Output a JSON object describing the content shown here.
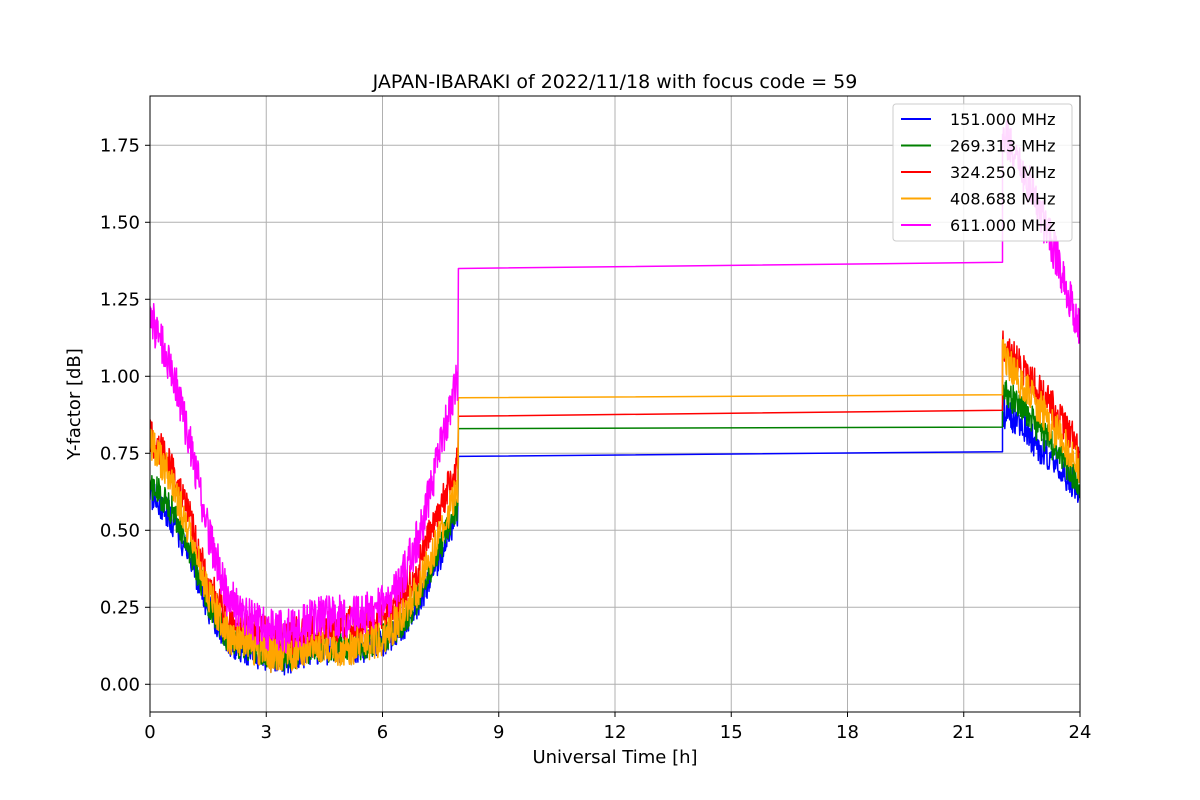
{
  "chart_data": {
    "type": "line",
    "title": "JAPAN-IBARAKI of 2022/11/18 with focus code = 59",
    "xlabel": "Universal Time [h]",
    "ylabel": "Y-factor [dB]",
    "xlim": [
      0,
      24
    ],
    "ylim": [
      -0.09,
      1.91
    ],
    "xticks": [
      0,
      3,
      6,
      9,
      12,
      15,
      18,
      21,
      24
    ],
    "xtick_labels": [
      "0",
      "3",
      "6",
      "9",
      "12",
      "15",
      "18",
      "21",
      "24"
    ],
    "yticks": [
      0.0,
      0.25,
      0.5,
      0.75,
      1.0,
      1.25,
      1.5,
      1.75
    ],
    "ytick_labels": [
      "0.00",
      "0.25",
      "0.50",
      "0.75",
      "1.00",
      "1.25",
      "1.50",
      "1.75"
    ],
    "grid": true,
    "legend_position": "top-right",
    "series": [
      {
        "name": "151.000 MHz",
        "color": "#0000ff",
        "x": [
          0,
          0.5,
          1.0,
          1.5,
          2.0,
          2.5,
          3.0,
          3.5,
          4.0,
          4.5,
          5.0,
          5.5,
          6.0,
          6.5,
          7.0,
          7.5,
          7.95,
          8.0,
          22.0,
          22.05,
          22.5,
          23.0,
          23.5,
          24.0
        ],
        "y": [
          0.62,
          0.55,
          0.42,
          0.25,
          0.14,
          0.11,
          0.09,
          0.08,
          0.1,
          0.11,
          0.11,
          0.12,
          0.14,
          0.18,
          0.28,
          0.42,
          0.57,
          0.74,
          0.755,
          0.88,
          0.84,
          0.76,
          0.7,
          0.63
        ],
        "noise": 0.05
      },
      {
        "name": "269.313 MHz",
        "color": "#008000",
        "x": [
          0,
          0.5,
          1.0,
          1.5,
          2.0,
          2.5,
          3.0,
          3.5,
          4.0,
          4.5,
          5.0,
          5.5,
          6.0,
          6.5,
          7.0,
          7.5,
          7.95,
          8.0,
          22.0,
          22.05,
          22.5,
          23.0,
          23.5,
          24.0
        ],
        "y": [
          0.65,
          0.58,
          0.45,
          0.27,
          0.15,
          0.12,
          0.1,
          0.09,
          0.11,
          0.12,
          0.12,
          0.13,
          0.15,
          0.2,
          0.3,
          0.45,
          0.58,
          0.83,
          0.835,
          0.95,
          0.9,
          0.82,
          0.74,
          0.65
        ],
        "noise": 0.05
      },
      {
        "name": "324.250 MHz",
        "color": "#ff0000",
        "x": [
          0,
          0.5,
          1.0,
          1.5,
          2.0,
          2.5,
          3.0,
          3.5,
          4.0,
          4.5,
          5.0,
          5.5,
          6.0,
          6.5,
          7.0,
          7.5,
          7.95,
          8.0,
          22.0,
          22.05,
          22.5,
          23.0,
          23.5,
          24.0
        ],
        "y": [
          0.8,
          0.72,
          0.55,
          0.33,
          0.2,
          0.18,
          0.16,
          0.15,
          0.17,
          0.18,
          0.19,
          0.2,
          0.22,
          0.28,
          0.4,
          0.58,
          0.72,
          0.87,
          0.89,
          1.1,
          1.02,
          0.94,
          0.86,
          0.76
        ],
        "noise": 0.06
      },
      {
        "name": "408.688 MHz",
        "color": "#ffa500",
        "x": [
          0,
          0.5,
          1.0,
          1.5,
          2.0,
          2.5,
          3.0,
          3.5,
          4.0,
          4.5,
          5.0,
          5.5,
          6.0,
          6.5,
          7.0,
          7.5,
          7.95,
          8.0,
          22.0,
          22.05,
          22.5,
          23.0,
          23.5,
          24.0
        ],
        "y": [
          0.78,
          0.68,
          0.5,
          0.3,
          0.16,
          0.13,
          0.1,
          0.09,
          0.11,
          0.12,
          0.12,
          0.13,
          0.15,
          0.22,
          0.33,
          0.5,
          0.63,
          0.93,
          0.94,
          1.06,
          0.98,
          0.89,
          0.8,
          0.7
        ],
        "noise": 0.06
      },
      {
        "name": "611.000 MHz",
        "color": "#ff00ff",
        "x": [
          0,
          0.5,
          1.0,
          1.5,
          2.0,
          2.5,
          3.0,
          3.5,
          4.0,
          4.5,
          5.0,
          5.5,
          6.0,
          6.5,
          7.0,
          7.5,
          7.95,
          8.0,
          22.0,
          22.05,
          22.5,
          23.0,
          23.5,
          24.0
        ],
        "y": [
          1.2,
          1.05,
          0.8,
          0.5,
          0.28,
          0.22,
          0.18,
          0.17,
          0.2,
          0.22,
          0.22,
          0.23,
          0.26,
          0.34,
          0.5,
          0.78,
          1.0,
          1.35,
          1.37,
          1.79,
          1.68,
          1.52,
          1.35,
          1.15
        ],
        "noise": 0.07
      }
    ]
  }
}
